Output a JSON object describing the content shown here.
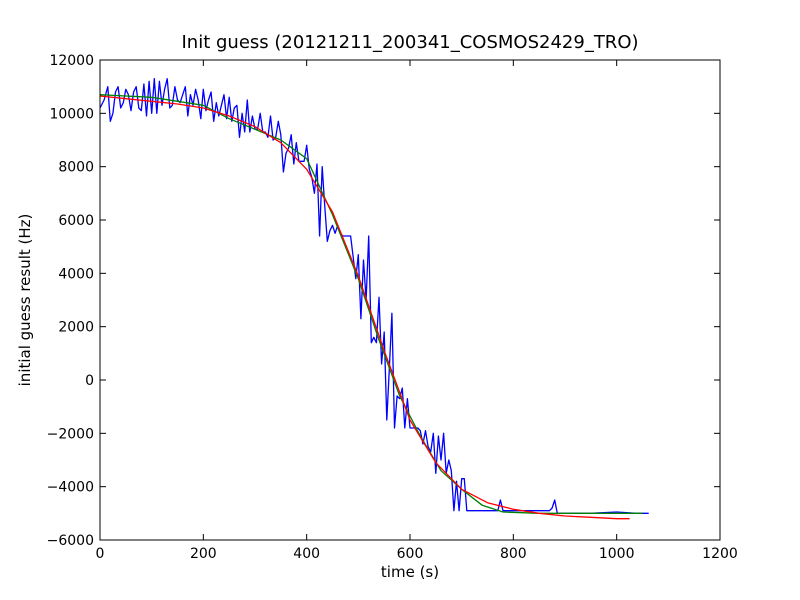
{
  "chart_data": {
    "type": "line",
    "title": "Init guess (20121211_200341_COSMOS2429_TRO)",
    "xlabel": "time (s)",
    "ylabel": "initial guess result (Hz)",
    "xlim": [
      0,
      1200
    ],
    "ylim": [
      -6000,
      12000
    ],
    "xticks": [
      0,
      200,
      400,
      600,
      800,
      1000,
      1200
    ],
    "yticks": [
      12000,
      10000,
      8000,
      6000,
      4000,
      2000,
      0,
      -2000,
      -4000,
      -6000
    ],
    "grid": false,
    "legend": "none",
    "series": [
      {
        "color": "#0000ff",
        "x": [
          0,
          8,
          15,
          20,
          25,
          30,
          35,
          40,
          45,
          50,
          55,
          60,
          65,
          70,
          75,
          80,
          85,
          90,
          95,
          100,
          105,
          110,
          115,
          120,
          125,
          130,
          135,
          140,
          145,
          150,
          155,
          160,
          165,
          170,
          175,
          180,
          185,
          190,
          195,
          200,
          205,
          210,
          215,
          220,
          225,
          230,
          235,
          240,
          245,
          250,
          255,
          260,
          265,
          270,
          275,
          280,
          285,
          290,
          295,
          300,
          305,
          310,
          315,
          320,
          325,
          330,
          335,
          340,
          345,
          350,
          355,
          360,
          365,
          370,
          375,
          380,
          385,
          390,
          395,
          400,
          405,
          410,
          415,
          420,
          425,
          430,
          435,
          440,
          445,
          450,
          455,
          460,
          465,
          470,
          475,
          480,
          485,
          490,
          495,
          500,
          505,
          510,
          515,
          520,
          525,
          530,
          535,
          540,
          545,
          550,
          555,
          560,
          565,
          570,
          575,
          580,
          585,
          590,
          595,
          600,
          605,
          610,
          615,
          620,
          625,
          630,
          635,
          640,
          645,
          650,
          655,
          660,
          665,
          670,
          675,
          680,
          685,
          690,
          695,
          700,
          705,
          710,
          720,
          740,
          760,
          770,
          775,
          780,
          800,
          820,
          850,
          870,
          875,
          880,
          885,
          900,
          950,
          1000,
          1040,
          1062
        ],
        "y": [
          10200,
          10500,
          11000,
          9700,
          10000,
          10800,
          11000,
          10200,
          10400,
          10900,
          10700,
          10100,
          10800,
          11000,
          10200,
          10100,
          11100,
          9900,
          11200,
          10000,
          11300,
          10000,
          11200,
          10300,
          10900,
          11300,
          10200,
          10300,
          11000,
          10500,
          10400,
          10700,
          11000,
          9900,
          10700,
          10300,
          10900,
          10500,
          9800,
          10900,
          10100,
          10500,
          10800,
          9700,
          10400,
          9900,
          10300,
          10700,
          9800,
          10600,
          9700,
          10200,
          10300,
          9100,
          10000,
          9300,
          10500,
          9300,
          9900,
          9400,
          9400,
          10000,
          9300,
          9300,
          9100,
          9900,
          9000,
          9100,
          9700,
          9200,
          7800,
          8500,
          8700,
          9200,
          8100,
          8900,
          8200,
          8200,
          8200,
          8800,
          7900,
          7600,
          7000,
          8100,
          5400,
          8000,
          6500,
          5200,
          5600,
          5800,
          5500,
          5800,
          5500,
          5400,
          5400,
          5400,
          5400,
          4600,
          3800,
          4700,
          2300,
          4500,
          3000,
          5400,
          1400,
          1600,
          1400,
          3100,
          600,
          1800,
          -1500,
          400,
          2500,
          -1800,
          -600,
          -700,
          -300,
          -1800,
          -700,
          -1800,
          -1800,
          -1800,
          -1800,
          -1900,
          -2400,
          -1900,
          -2500,
          -2700,
          -2000,
          -3500,
          -2100,
          -3000,
          -2000,
          -3500,
          -3000,
          -3400,
          -4900,
          -3800,
          -4900,
          -3700,
          -3700,
          -4900,
          -4900,
          -4900,
          -4900,
          -4900,
          -4500,
          -4900,
          -4900,
          -4900,
          -4900,
          -4900,
          -4800,
          -4500,
          -5000,
          -5000,
          -5000,
          -4950,
          -5000,
          -5000
        ]
      },
      {
        "color": "#008000",
        "x": [
          0,
          100,
          200,
          250,
          300,
          350,
          400,
          450,
          500,
          540,
          580,
          620,
          660,
          700,
          740,
          780,
          850,
          950,
          1050
        ],
        "y": [
          10700,
          10600,
          10300,
          9800,
          9400,
          9000,
          8300,
          6200,
          3800,
          1500,
          -600,
          -2100,
          -3400,
          -4100,
          -4700,
          -4950,
          -5000,
          -5000,
          -5000
        ]
      },
      {
        "color": "#ff0000",
        "x": [
          0,
          50,
          100,
          150,
          200,
          250,
          300,
          350,
          400,
          450,
          500,
          550,
          600,
          650,
          700,
          750,
          800,
          850,
          900,
          950,
          1000,
          1025
        ],
        "y": [
          10650,
          10550,
          10450,
          10350,
          10200,
          9900,
          9500,
          8900,
          7900,
          6300,
          3900,
          1100,
          -1500,
          -3100,
          -4100,
          -4600,
          -4850,
          -5000,
          -5100,
          -5150,
          -5200,
          -5200
        ]
      }
    ]
  }
}
